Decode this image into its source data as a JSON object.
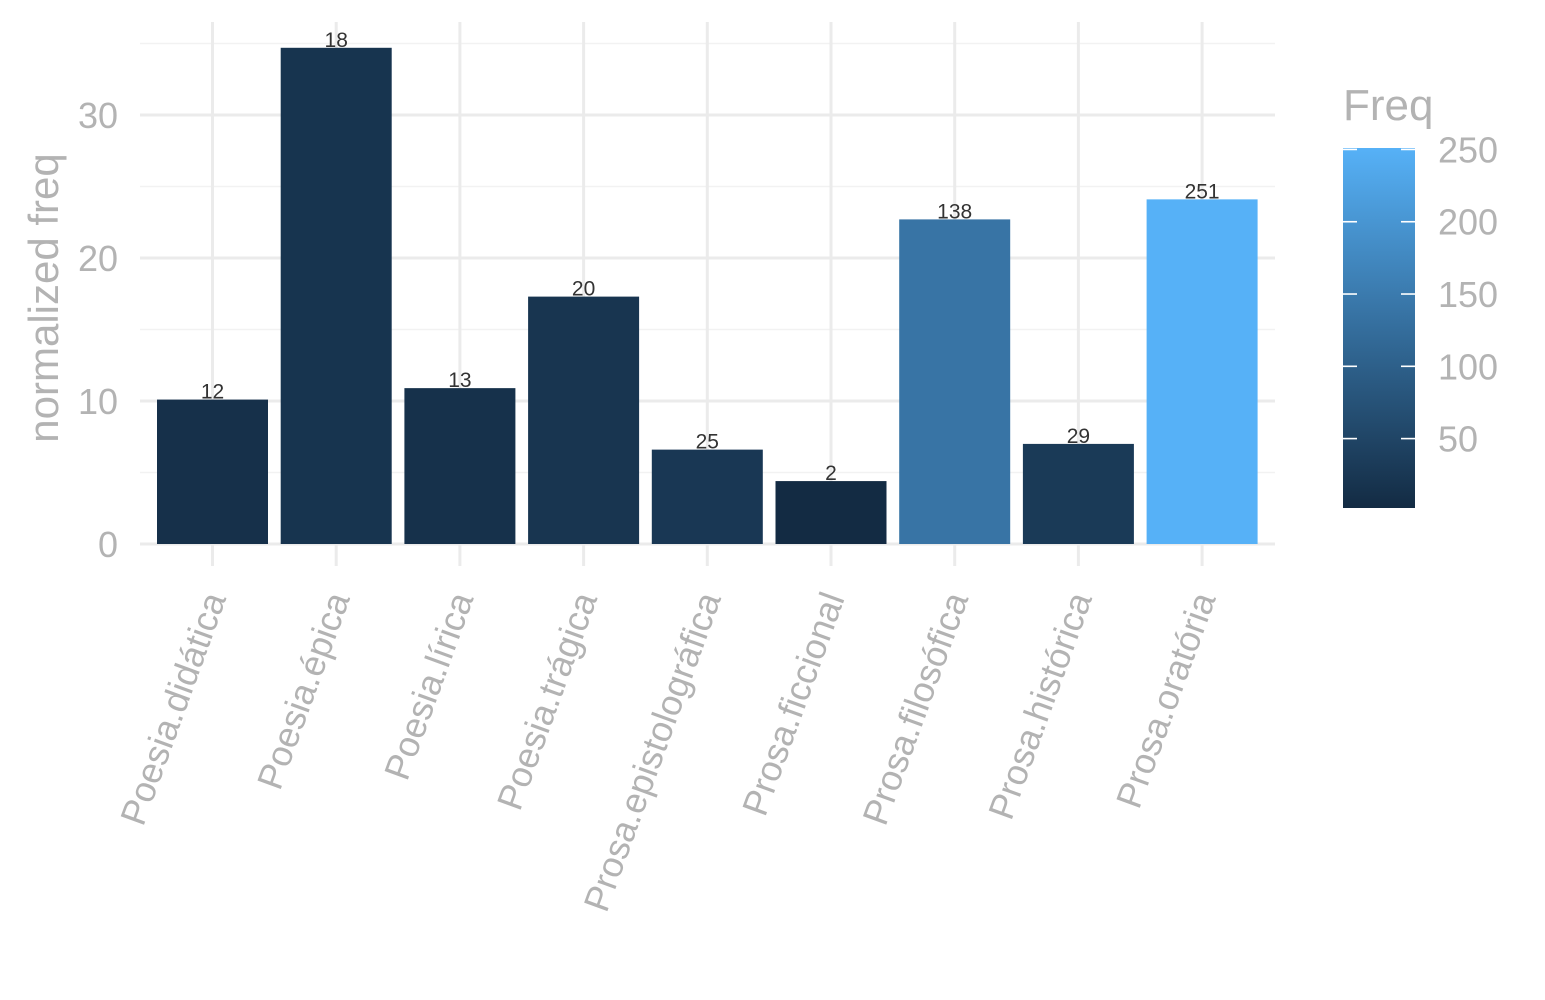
{
  "chart_data": {
    "type": "bar",
    "categories": [
      "Poesia.didática",
      "Poesia.épica",
      "Poesia.lírica",
      "Poesia.trágica",
      "Prosa.epistolográfica",
      "Prosa.ficcional",
      "Prosa.filosófica",
      "Prosa.histórica",
      "Prosa.oratória"
    ],
    "values": [
      10.1,
      34.7,
      10.9,
      17.3,
      6.6,
      4.4,
      22.7,
      7.0,
      24.1
    ],
    "freq": [
      12,
      18,
      13,
      20,
      25,
      2,
      138,
      29,
      251
    ],
    "ylabel": "normalized freq",
    "xlabel": "",
    "ylim": [
      0,
      36
    ],
    "yticks": [
      0,
      10,
      20,
      30
    ],
    "y_tick_labels": [
      "0",
      "10",
      "20",
      "30"
    ],
    "grid": true,
    "legend": {
      "title": "Freq",
      "position": "right",
      "ticks": [
        50,
        100,
        150,
        200,
        250
      ],
      "tick_labels": [
        "50",
        "100",
        "150",
        "200",
        "250"
      ],
      "range": [
        2,
        251
      ],
      "color_low": "#132B43",
      "color_high": "#56B1F7"
    }
  }
}
